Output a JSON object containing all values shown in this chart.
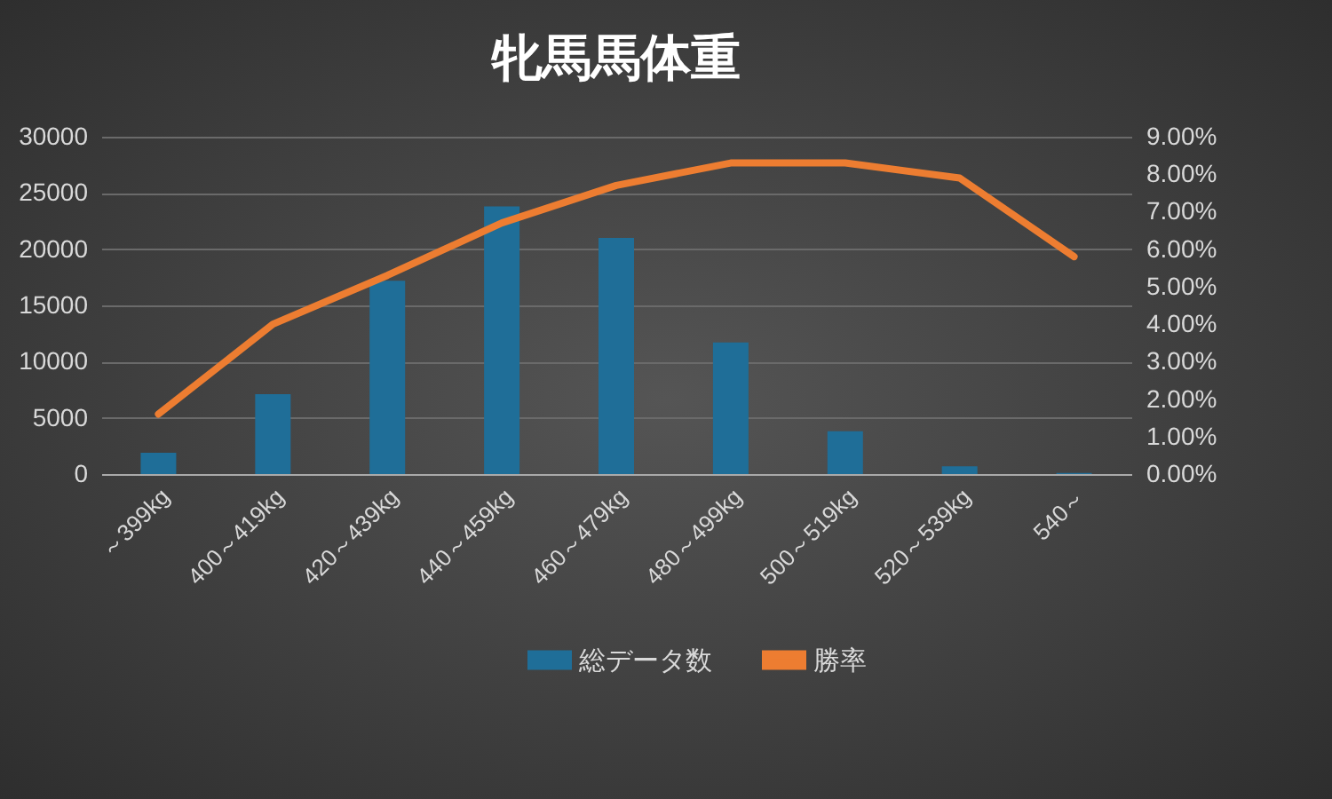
{
  "chart_data": {
    "type": "bar",
    "title": "牝馬馬体重",
    "categories": [
      "～399kg",
      "400～419kg",
      "420～439kg",
      "440～459kg",
      "460～479kg",
      "480～499kg",
      "500～519kg",
      "520～539kg",
      "540～"
    ],
    "series": [
      {
        "name": "総データ数",
        "color": "#1f6e98",
        "values": [
          1900,
          7100,
          17200,
          23800,
          21000,
          11700,
          3800,
          700,
          100
        ]
      },
      {
        "name": "勝率",
        "type": "line",
        "axis": "y2",
        "color": "#ed7d31",
        "values": [
          1.6,
          4.0,
          5.3,
          6.7,
          7.7,
          8.3,
          8.3,
          7.9,
          5.8
        ]
      }
    ],
    "ylim": [
      0,
      30000
    ],
    "yticks": [
      0,
      5000,
      10000,
      15000,
      20000,
      25000,
      30000
    ],
    "y2lim": [
      0,
      9
    ],
    "y2ticks": [
      {
        "value": 0,
        "label": "0.00%"
      },
      {
        "value": 1,
        "label": "1.00%"
      },
      {
        "value": 2,
        "label": "2.00%"
      },
      {
        "value": 3,
        "label": "3.00%"
      },
      {
        "value": 4,
        "label": "4.00%"
      },
      {
        "value": 5,
        "label": "5.00%"
      },
      {
        "value": 6,
        "label": "6.00%"
      },
      {
        "value": 7,
        "label": "7.00%"
      },
      {
        "value": 8,
        "label": "8.00%"
      },
      {
        "value": 9,
        "label": "9.00%"
      }
    ],
    "grid": "y",
    "legend": "bottom",
    "marker": "none",
    "line_style": "solid"
  }
}
